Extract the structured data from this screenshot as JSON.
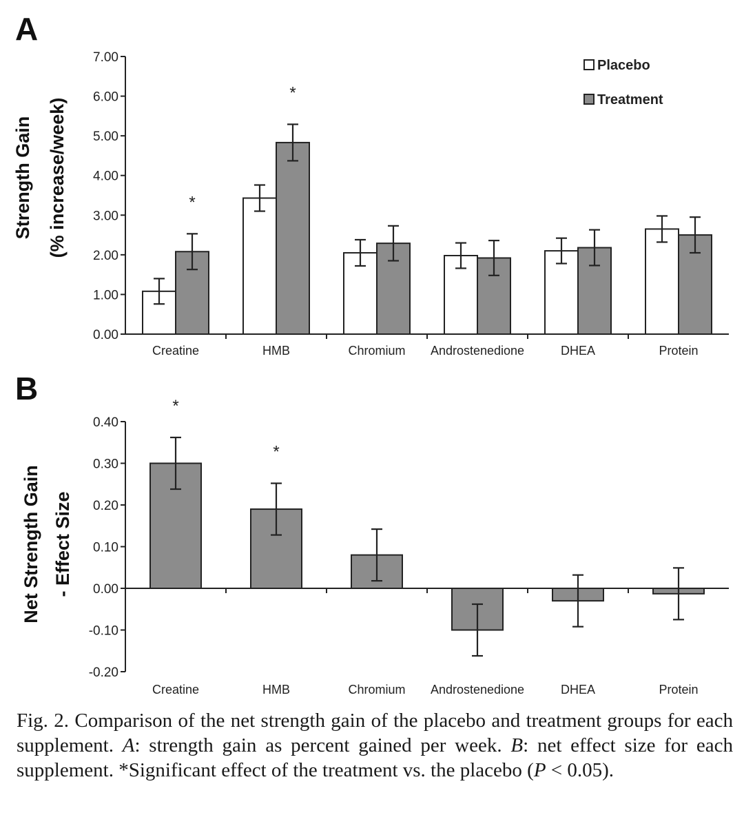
{
  "panels": [
    {
      "letter": "A",
      "chart_data": {
        "type": "bar",
        "ylabel": [
          "Strength Gain",
          "(% increase/week)"
        ],
        "ylim": [
          0,
          7
        ],
        "yticks": [
          0,
          1,
          2,
          3,
          4,
          5,
          6,
          7
        ],
        "ytick_labels": [
          "0.00",
          "1.00",
          "2.00",
          "3.00",
          "4.00",
          "5.00",
          "6.00",
          "7.00"
        ],
        "categories": [
          "Creatine",
          "HMB",
          "Chromium",
          "Androstenedione",
          "DHEA",
          "Protein"
        ],
        "legend_position": "top-right",
        "series": [
          {
            "name": "Placebo",
            "color": "#ffffff",
            "values": [
              1.08,
              3.43,
              2.05,
              1.98,
              2.1,
              2.65
            ],
            "errors": [
              0.32,
              0.33,
              0.33,
              0.32,
              0.32,
              0.33
            ]
          },
          {
            "name": "Treatment",
            "color": "#8c8c8c",
            "values": [
              2.08,
              4.83,
              2.29,
              1.92,
              2.18,
              2.5
            ],
            "errors": [
              0.45,
              0.46,
              0.44,
              0.44,
              0.45,
              0.45
            ]
          }
        ],
        "significance_marker": "*",
        "significant": [
          "Creatine",
          "HMB"
        ]
      }
    },
    {
      "letter": "B",
      "chart_data": {
        "type": "bar",
        "ylabel": [
          "Net Strength Gain",
          "- Effect Size"
        ],
        "ylim": [
          -0.2,
          0.4
        ],
        "yticks": [
          -0.2,
          -0.1,
          0,
          0.1,
          0.2,
          0.3,
          0.4
        ],
        "ytick_labels": [
          "-0.20",
          "-0.10",
          "0.00",
          "0.10",
          "0.20",
          "0.30",
          "0.40"
        ],
        "categories": [
          "Creatine",
          "HMB",
          "Chromium",
          "Androstenedione",
          "DHEA",
          "Protein"
        ],
        "series": [
          {
            "color": "#8c8c8c",
            "values": [
              0.3,
              0.19,
              0.08,
              -0.1,
              -0.03,
              -0.013
            ],
            "errors": [
              0.062,
              0.062,
              0.062,
              0.062,
              0.062,
              0.062
            ]
          }
        ],
        "significance_marker": "*",
        "significant": [
          "Creatine",
          "HMB"
        ]
      }
    }
  ],
  "caption": {
    "p1": "Fig. 2. Comparison of the net strength gain of the placebo and treatment groups for each supplement. ",
    "a": "A",
    "p2": ": strength gain as percent gained per week. ",
    "b": "B",
    "p3": ": net effect size for each supplement. *Significant effect of the treatment vs. the placebo (",
    "pvar": "P",
    "p4": " < 0.05)."
  }
}
